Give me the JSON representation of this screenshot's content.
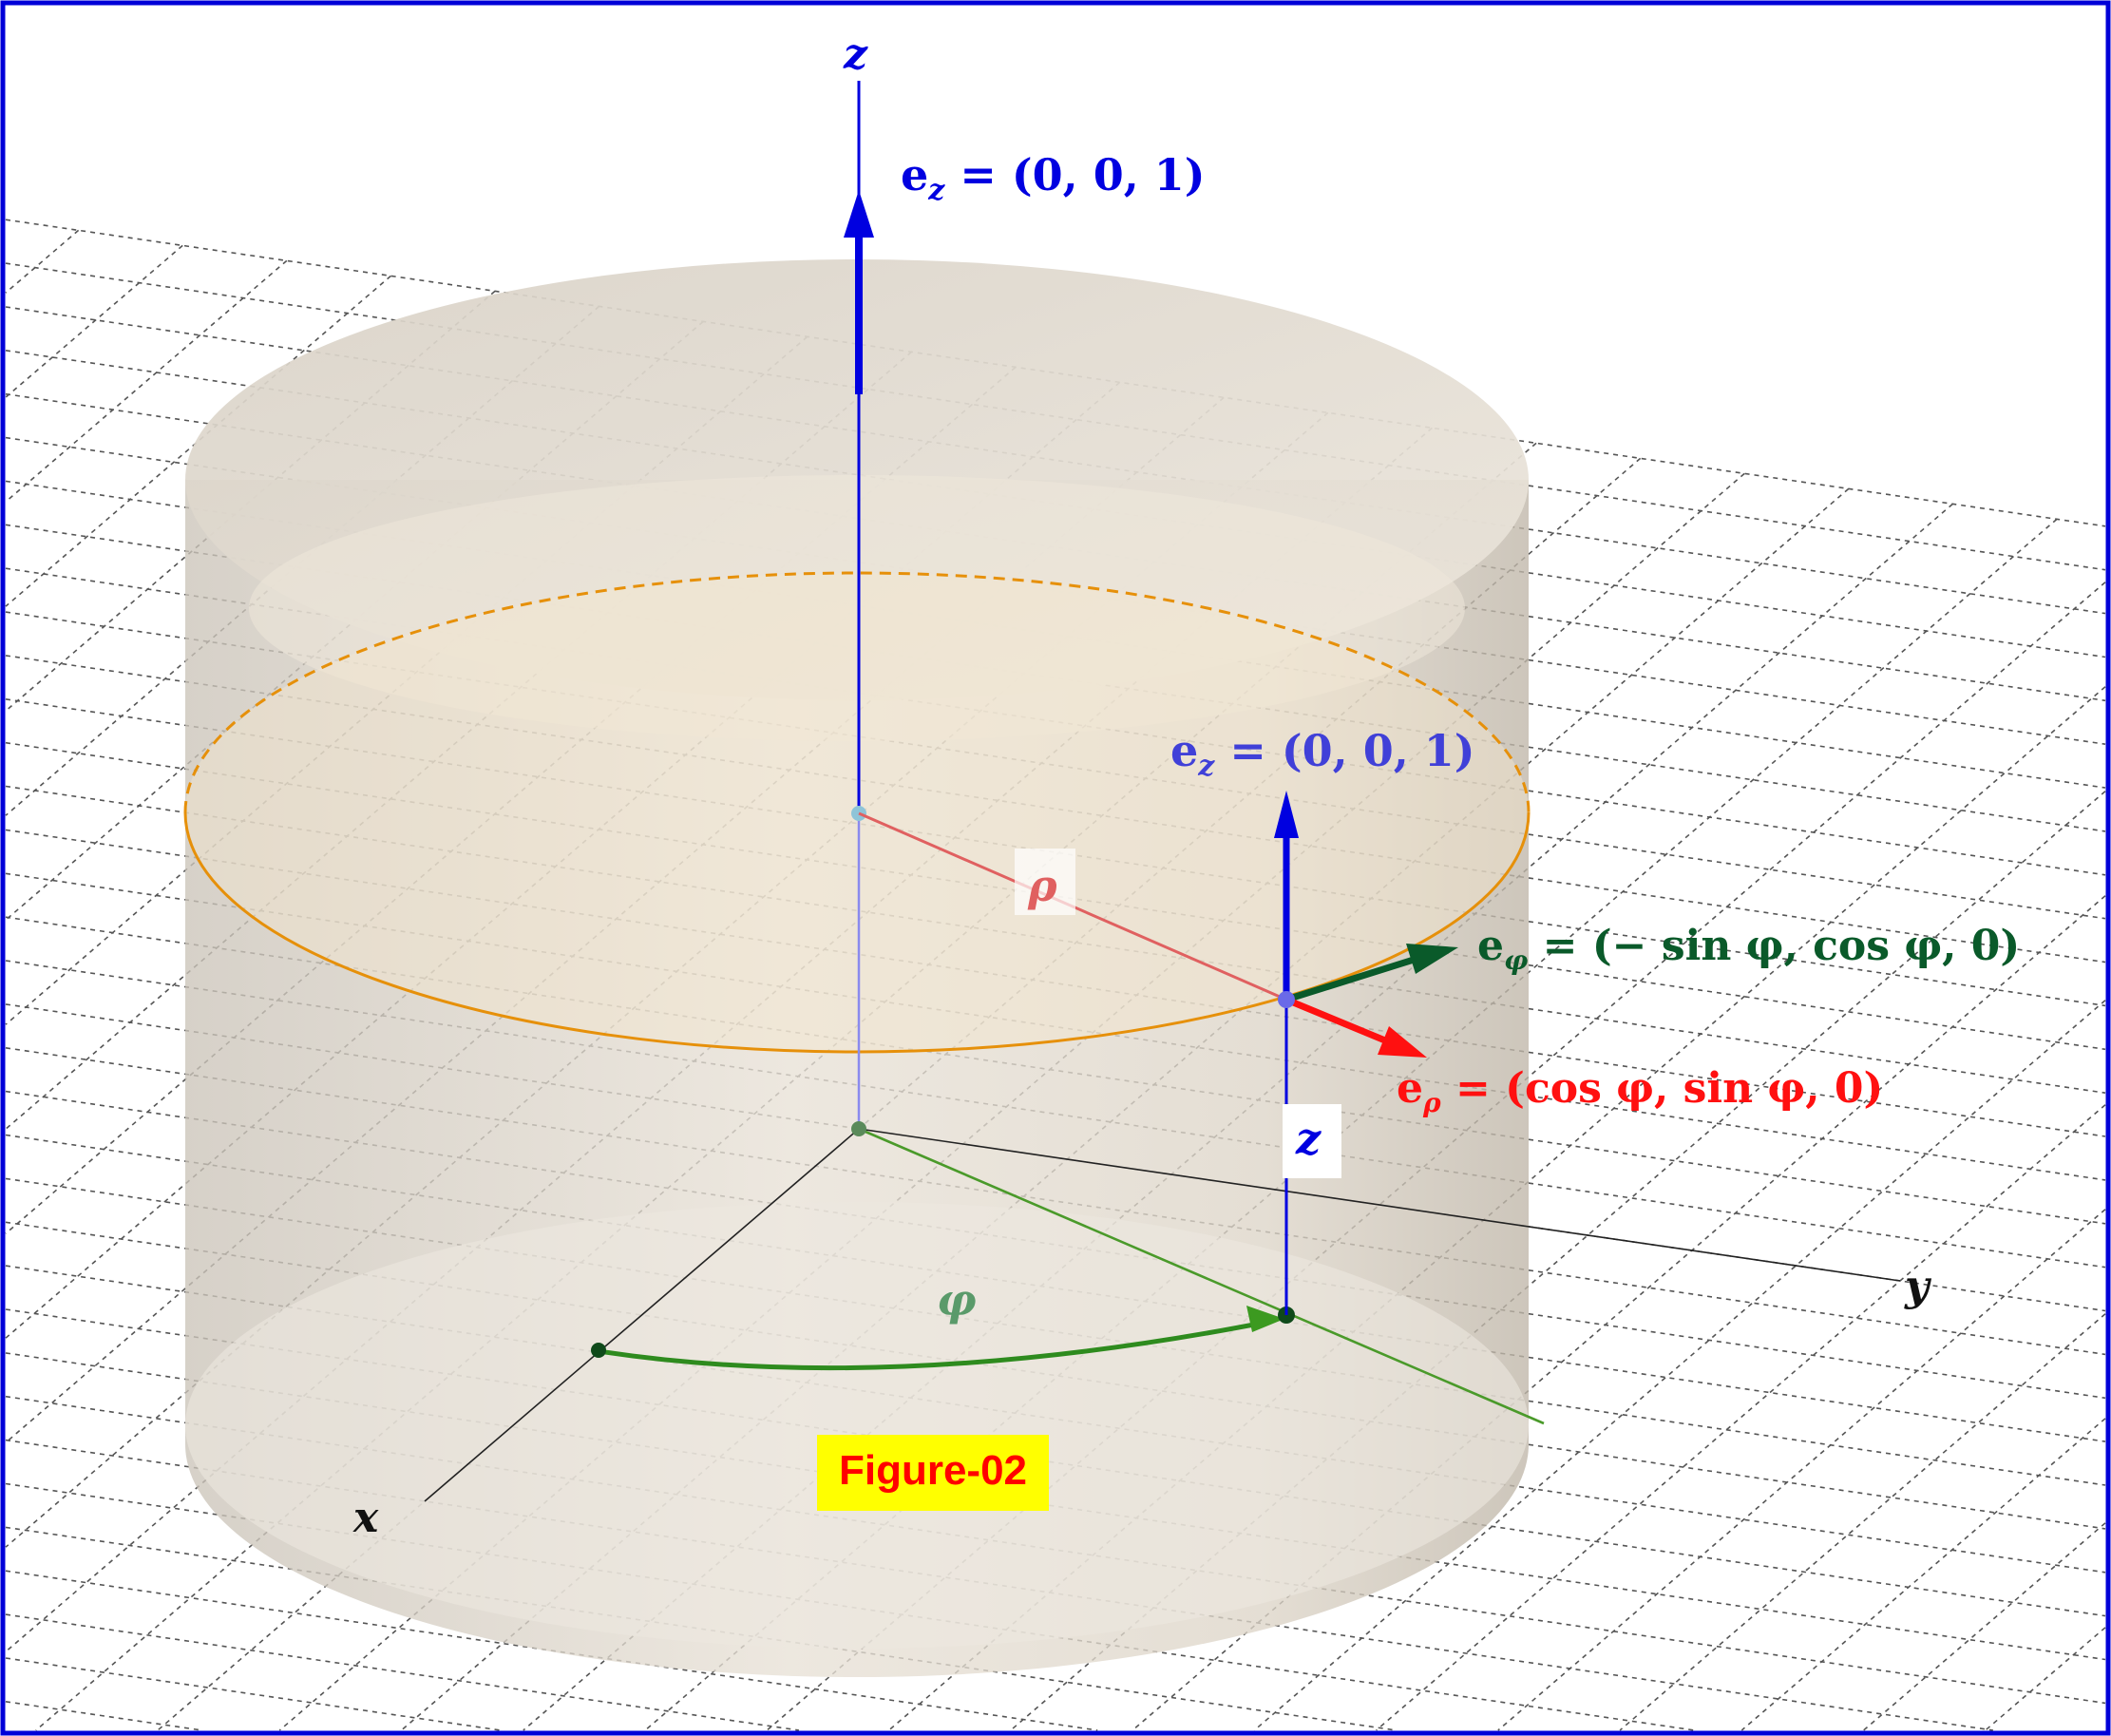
{
  "labels": {
    "z_axis": "z",
    "x_axis": "x",
    "y_axis": "y",
    "ez_top": "e",
    "ez_top_sub": "z",
    "ez_top_rhs": " = (0, 0, 1)",
    "ez_point": "e",
    "ez_point_sub": "z",
    "ez_point_rhs": " = (0, 0, 1)",
    "ephi": "e",
    "ephi_sub": "φ",
    "ephi_rhs": " = (− sin φ, cos φ, 0)",
    "erho": "e",
    "erho_sub": "ρ",
    "erho_rhs": " = (cos φ, sin φ, 0)",
    "rho": "ρ",
    "phi": "φ",
    "z_height": "z",
    "figure": "Figure-02"
  },
  "colors": {
    "frame": "#0000d8",
    "z_axis": "#0000e0",
    "orange_circle": "#e6900a",
    "cylinder": "#d8cfc2",
    "rho_line": "#e06060",
    "phi_arc": "#2e8b1e",
    "ephi_arrow": "#0a5a2a",
    "erho_arrow": "#ff1010",
    "figure_bg": "#ffff00",
    "figure_text": "#ff0000"
  }
}
